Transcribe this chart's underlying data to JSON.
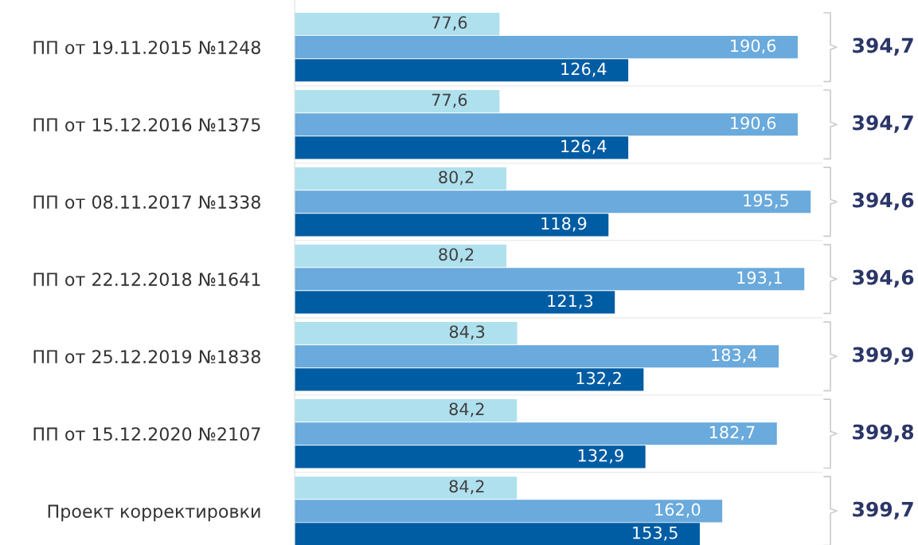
{
  "chart_data": {
    "type": "bar",
    "orientation": "horizontal",
    "categories": [
      "ПП от 19.11.2015 №1248",
      "ПП от 15.12.2016 №1375",
      "ПП от 08.11.2017 №1338",
      "ПП от 22.12.2018 №1641",
      "ПП от 25.12.2019 №1838",
      "ПП от 15.12.2020 №2107",
      "Проект корректировки"
    ],
    "series": [
      {
        "color": "#afe0ee",
        "values": [
          77.6,
          77.6,
          80.2,
          80.2,
          84.3,
          84.2,
          84.2
        ],
        "value_labels": [
          "77,6",
          "77,6",
          "80,2",
          "80,2",
          "84,3",
          "84,2",
          "84,2"
        ]
      },
      {
        "color": "#6aaadc",
        "values": [
          190.6,
          190.6,
          195.5,
          193.1,
          183.4,
          182.7,
          162.0
        ],
        "value_labels": [
          "190,6",
          "190,6",
          "195,5",
          "193,1",
          "183,4",
          "182,7",
          "162,0"
        ]
      },
      {
        "color": "#005ca3",
        "values": [
          126.4,
          126.4,
          118.9,
          121.3,
          132.2,
          132.9,
          153.5
        ],
        "value_labels": [
          "126,4",
          "126,4",
          "118,9",
          "121,3",
          "132,2",
          "132,9",
          "153,5"
        ]
      }
    ],
    "annotations": [
      "394,7",
      "394,7",
      "394,6",
      "394,6",
      "399,9",
      "399,8",
      "399,7"
    ],
    "xlim": [
      0,
      200
    ],
    "tick_labels": "y",
    "grid": false,
    "legend": false
  }
}
